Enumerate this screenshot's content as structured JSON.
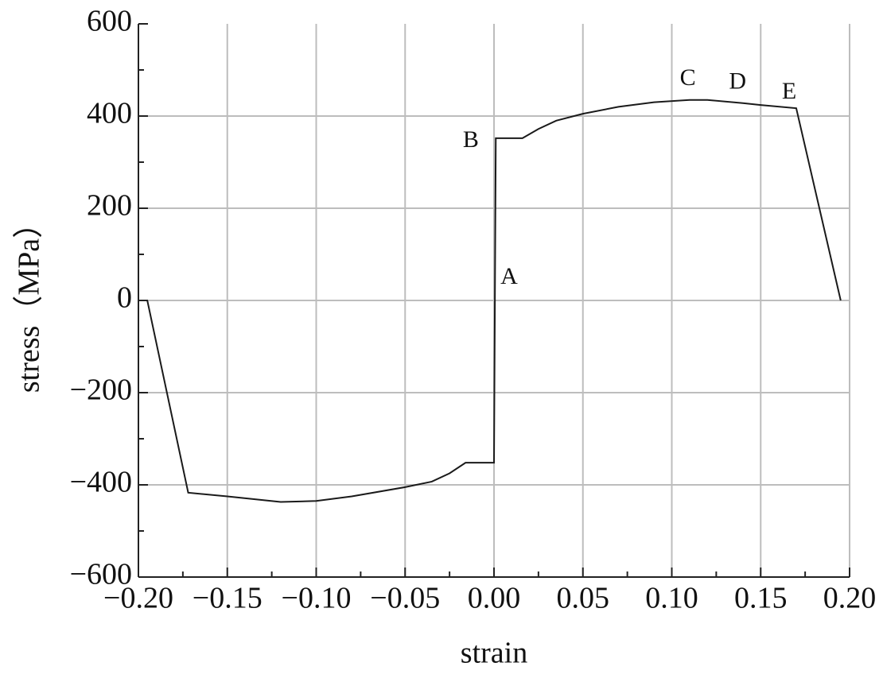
{
  "chart_data": {
    "type": "line",
    "xlabel": "strain",
    "ylabel": "stress（MPa）",
    "x": [
      -0.195,
      -0.172,
      -0.15,
      -0.12,
      -0.1,
      -0.08,
      -0.05,
      -0.035,
      -0.025,
      -0.016,
      0,
      0.001,
      0.016,
      0.025,
      0.035,
      0.05,
      0.07,
      0.09,
      0.11,
      0.12,
      0.14,
      0.15,
      0.17,
      0.195
    ],
    "series": [
      {
        "color": "#1a1a1a",
        "values": [
          0,
          -417,
          -425,
          -437,
          -435,
          -425,
          -405,
          -393,
          -375,
          -352,
          -352,
          352,
          352,
          372,
          390,
          405,
          420,
          430,
          435,
          435,
          428,
          424,
          417,
          0
        ]
      }
    ],
    "xlim": [
      -0.2,
      0.2
    ],
    "xticks": [
      {
        "value": -0.2,
        "label": "−0.20"
      },
      {
        "value": -0.15,
        "label": "−0.15"
      },
      {
        "value": -0.1,
        "label": "−0.10"
      },
      {
        "value": -0.05,
        "label": "−0.05"
      },
      {
        "value": 0,
        "label": "0.00"
      },
      {
        "value": 0.05,
        "label": "0.05"
      },
      {
        "value": 0.1,
        "label": "0.10"
      },
      {
        "value": 0.15,
        "label": "0.15"
      },
      {
        "value": 0.2,
        "label": "0.20"
      }
    ],
    "ylim": [
      -600,
      600
    ],
    "yticks": [
      {
        "value": -600,
        "label": "−600"
      },
      {
        "value": -400,
        "label": "−400"
      },
      {
        "value": -200,
        "label": "−200"
      },
      0,
      200,
      400,
      600
    ],
    "grid": true,
    "annotations": [
      {
        "text": "A",
        "x": 0.0085,
        "y": 48
      },
      {
        "text": "B",
        "x": -0.013,
        "y": 345
      },
      {
        "text": "C",
        "x": 0.109,
        "y": 479
      },
      {
        "text": "D",
        "x": 0.137,
        "y": 471
      },
      {
        "text": "E",
        "x": 0.166,
        "y": 450
      }
    ]
  }
}
